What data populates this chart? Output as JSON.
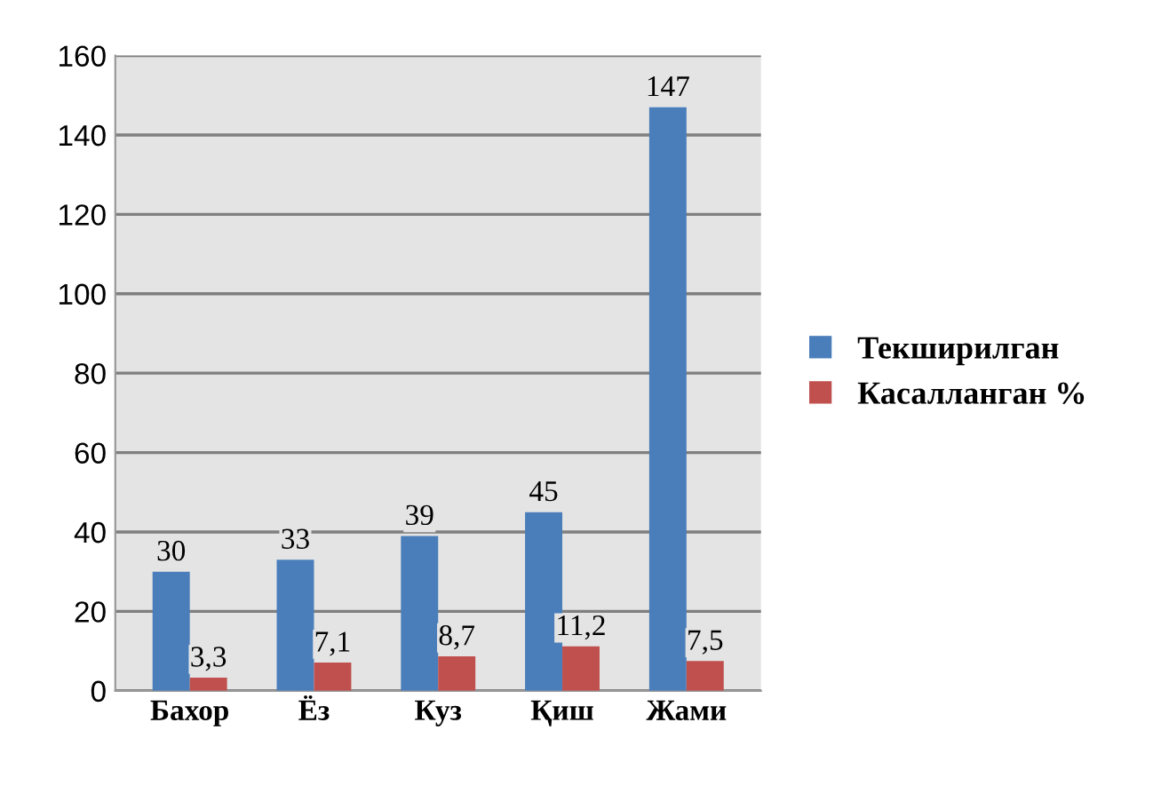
{
  "chart_data": {
    "type": "bar",
    "categories": [
      "Бахор",
      "Ёз",
      "Куз",
      "Қиш",
      "Жами"
    ],
    "series": [
      {
        "name": "Текширилган",
        "color": "#4a7ebb",
        "values": [
          30,
          33,
          39,
          45,
          147
        ],
        "value_labels": [
          "30",
          "33",
          "39",
          "45",
          "147"
        ]
      },
      {
        "name": "Касалланган %",
        "color": "#c0504d",
        "values": [
          3.3,
          7.1,
          8.7,
          11.2,
          7.5
        ],
        "value_labels": [
          "3,3",
          "7,1",
          "8,7",
          "11,2",
          "7,5"
        ]
      }
    ],
    "ylim": [
      0,
      160
    ],
    "yticks": [
      0,
      20,
      40,
      60,
      80,
      100,
      120,
      140,
      160
    ],
    "grid": "y",
    "legend": "right"
  }
}
